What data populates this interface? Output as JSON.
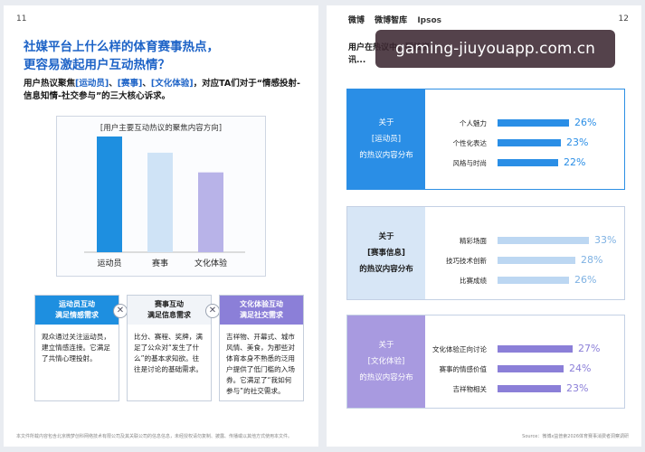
{
  "left": {
    "page_number": "11",
    "title_line1": "社媒平台上什么样的体育赛事热点，",
    "title_line2": "更容易激起用户互动热情？",
    "subtitle_pre": "用户热议聚焦",
    "subtitle_hl1": "[运动员]",
    "subtitle_sep1": "、",
    "subtitle_hl2": "[赛事]",
    "subtitle_sep2": "、",
    "subtitle_hl3": "[文化体验]",
    "subtitle_post": "，对应TA们对于“情感投射-信息知情-社交参与”的三大核心诉求。",
    "footnote": "本文件所载内容包含北京微梦创科网络技术有限公司及其关联公司的信息信息，未经授权请勿复制、披露、传播或以其他方式使用本文件。"
  },
  "chart_data": {
    "type": "bar",
    "title": "[用户主要互动热议的聚焦内容方向]",
    "categories": [
      "运动员",
      "赛事",
      "文化体验"
    ],
    "values": [
      1.0,
      0.86,
      0.69
    ],
    "colors": [
      "#1e8fe0",
      "#cfe3f6",
      "#b8b3e8"
    ],
    "ylim": [
      0,
      1.1
    ],
    "grid": false,
    "xlabel": "",
    "ylabel": ""
  },
  "cards": [
    {
      "head1": "运动员互动",
      "head2": "满足情感需求",
      "body": "观众通过关注运动员，建立情感连接。它满足了共情心理投射。"
    },
    {
      "head1": "赛事互动",
      "head2": "满足信息需求",
      "body": "比分、赛程、奖牌，满足了公众对“发生了什么”的基本求知欲。往往是讨论的基础需求。"
    },
    {
      "head1": "文化体验互动",
      "head2": "满足社交需求",
      "body": "吉祥物、开幕式、城市风情、美食，为那些对体育本身不熟悉的泛用户提供了低门槛的入场券。它满足了“我如何参与”的社交需求。"
    }
  ],
  "right": {
    "page_number": "12",
    "logos": [
      "微博",
      "微博智库",
      "Ipsos"
    ],
    "intro": "用户在热议中，硬核资讯...",
    "source": "Source：微博x益普索2026体育赛事消费者洞察调研",
    "panels": [
      {
        "label_lines": [
          "关于",
          "[运动员]",
          "的热议内容分布"
        ],
        "color": "#2a8ee6",
        "rows": [
          {
            "label": "个人魅力",
            "value": 26,
            "display": "26%"
          },
          {
            "label": "个性化表达",
            "value": 23,
            "display": "23%"
          },
          {
            "label": "风格与时尚",
            "value": 22,
            "display": "22%"
          }
        ]
      },
      {
        "label_lines": [
          "关于",
          "[赛事信息]",
          "的热议内容分布"
        ],
        "color": "#bcd7f2",
        "rows": [
          {
            "label": "精彩场面",
            "value": 33,
            "display": "33%"
          },
          {
            "label": "技巧技术创新",
            "value": 28,
            "display": "28%"
          },
          {
            "label": "比赛成绩",
            "value": 26,
            "display": "26%"
          }
        ]
      },
      {
        "label_lines": [
          "关于",
          "[文化体验]",
          "的热议内容分布"
        ],
        "color": "#8b7fd8",
        "rows": [
          {
            "label": "文化体验正向讨论",
            "value": 27,
            "display": "27%"
          },
          {
            "label": "赛事的情感价值",
            "value": 24,
            "display": "24%"
          },
          {
            "label": "吉祥物相关",
            "value": 23,
            "display": "23%"
          }
        ]
      }
    ]
  },
  "overlay_text": "gaming-jiuyouapp.com.cn"
}
